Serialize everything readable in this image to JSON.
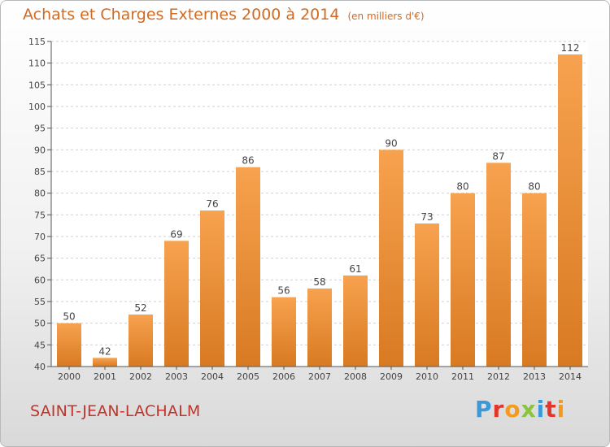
{
  "title": "Achats et Charges Externes 2000 à 2014",
  "unit_note": "(en milliers d'€)",
  "location": "SAINT-JEAN-LACHALM",
  "logo_text": "Proxiti",
  "colors": {
    "bar_light": "#f7a24f",
    "bar_dark": "#d87a22",
    "title": "#d26a22",
    "location": "#c0352b"
  },
  "chart_data": {
    "type": "bar",
    "categories": [
      "2000",
      "2001",
      "2002",
      "2003",
      "2004",
      "2005",
      "2006",
      "2007",
      "2008",
      "2009",
      "2010",
      "2011",
      "2012",
      "2013",
      "2014"
    ],
    "values": [
      50,
      42,
      52,
      69,
      76,
      86,
      56,
      58,
      61,
      90,
      73,
      80,
      87,
      80,
      112
    ],
    "ylim": [
      40,
      115
    ],
    "yticks": [
      40,
      45,
      50,
      55,
      60,
      65,
      70,
      75,
      80,
      85,
      90,
      95,
      100,
      105,
      110,
      115
    ],
    "grid": true
  }
}
